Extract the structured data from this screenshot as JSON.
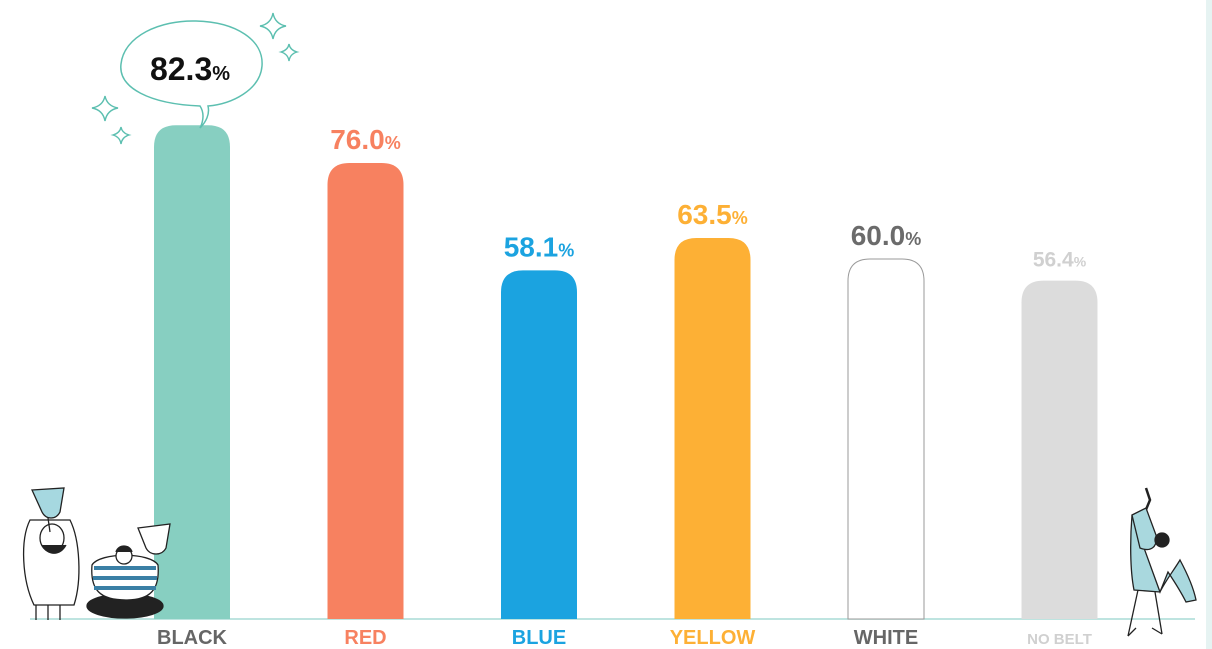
{
  "chart_data": {
    "type": "bar",
    "title": "",
    "xlabel": "",
    "ylabel": "",
    "categories": [
      "BLACK",
      "RED",
      "BLUE",
      "YELLOW",
      "WHITE",
      "NO BELT"
    ],
    "values": [
      82.3,
      76.0,
      58.1,
      63.5,
      60.0,
      56.4
    ],
    "value_labels": [
      "82.3",
      "76.0",
      "58.1",
      "63.5",
      "60.0",
      "56.4"
    ],
    "unit": "%",
    "ylim": [
      0,
      100
    ],
    "grid": false,
    "legend": "none",
    "highlight_index": 0,
    "bar_colors": [
      "#87cfc1",
      "#f78160",
      "#1ba3e0",
      "#fdb035",
      "#ffffff",
      "#dcdcdc"
    ],
    "bar_stroke_colors": [
      "none",
      "none",
      "none",
      "none",
      "#9a9a9a",
      "none"
    ],
    "label_colors": [
      "#111111",
      "#f78160",
      "#1ba3e0",
      "#fdb035",
      "#6b6b6b",
      "#d0d0d0"
    ],
    "category_label_colors": [
      "#666666",
      "#f78160",
      "#1ba3e0",
      "#fdb035",
      "#666666",
      "#d0d0d0"
    ],
    "accent_color": "#5cbfb0",
    "icons": [
      "sparkle-icon",
      "speech-bubble-icon",
      "trophy-people-illustration",
      "pointing-person-illustration"
    ]
  }
}
